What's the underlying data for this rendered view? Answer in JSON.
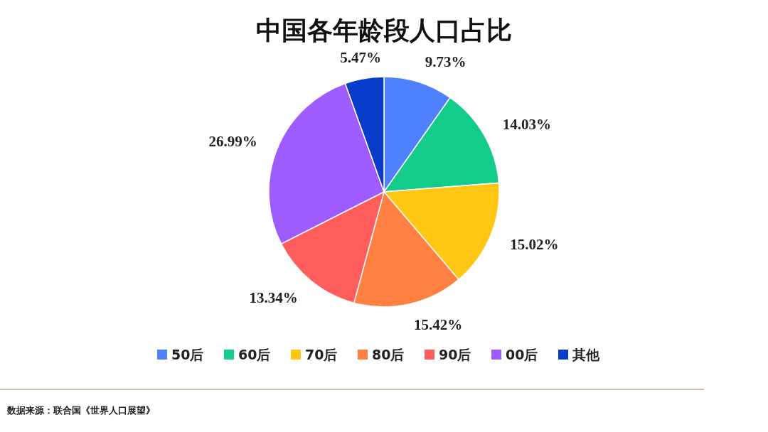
{
  "chart_data": {
    "type": "pie",
    "title": "中国各年龄段人口占比",
    "categories": [
      "50后",
      "60后",
      "70后",
      "80后",
      "90后",
      "00后",
      "其他"
    ],
    "values": [
      9.73,
      14.03,
      15.02,
      15.42,
      13.34,
      26.99,
      5.47
    ],
    "colors": [
      "#4f81ff",
      "#13cc8a",
      "#ffc714",
      "#ff8040",
      "#ff5c5c",
      "#9e5cff",
      "#0a3ccc"
    ],
    "value_labels": [
      "9.73%",
      "14.03%",
      "15.02%",
      "15.42%",
      "13.34%",
      "26.99%",
      "5.47%"
    ],
    "legend": "bottom",
    "annotations": [
      "数据来源：联合国《世界人口展望》"
    ]
  }
}
